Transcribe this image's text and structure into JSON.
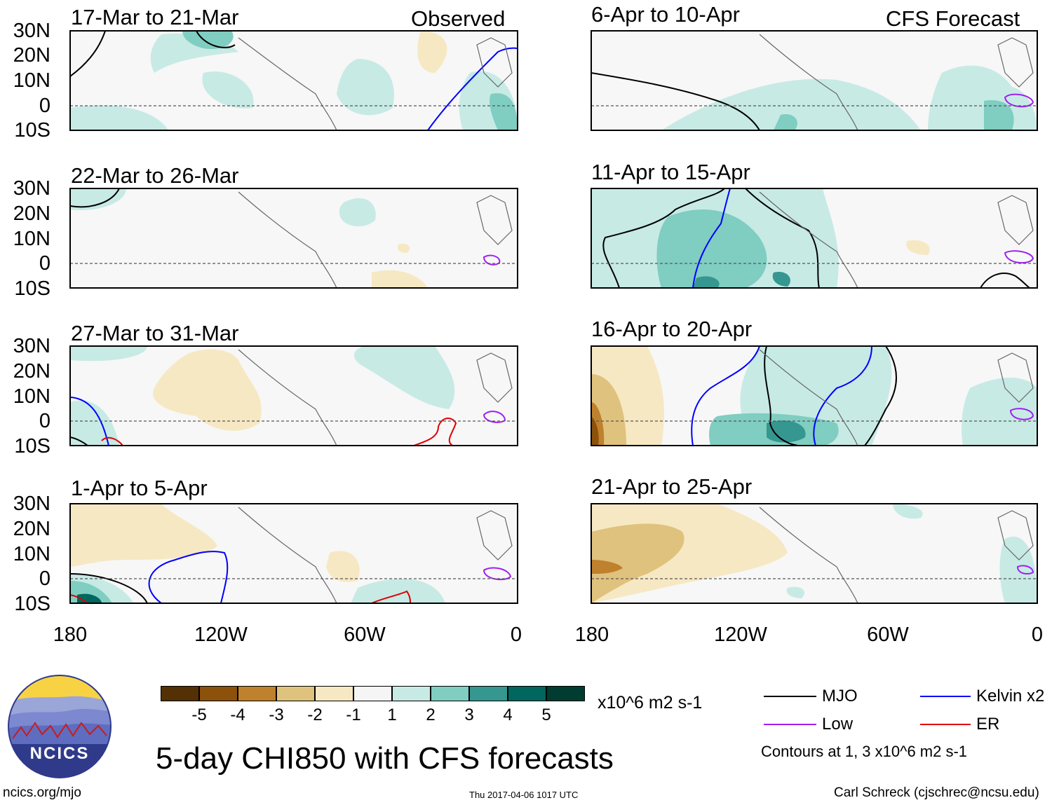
{
  "headers": {
    "observed": "Observed",
    "forecast": "CFS Forecast"
  },
  "lat_labels": [
    "30N",
    "20N",
    "10N",
    "0",
    "10S"
  ],
  "lon_labels": [
    "180",
    "120W",
    "60W",
    "0"
  ],
  "panels_left": [
    {
      "title": "17-Mar to 21-Mar"
    },
    {
      "title": "22-Mar to 26-Mar"
    },
    {
      "title": "27-Mar to 31-Mar"
    },
    {
      "title": "1-Apr to 5-Apr"
    }
  ],
  "panels_right": [
    {
      "title": "6-Apr to 10-Apr"
    },
    {
      "title": "11-Apr to 15-Apr"
    },
    {
      "title": "16-Apr to 20-Apr"
    },
    {
      "title": "21-Apr to 25-Apr"
    }
  ],
  "colorbar": {
    "colors": [
      "#543005",
      "#8c510a",
      "#bf812d",
      "#dfc27d",
      "#f6e8c3",
      "#f5f5f5",
      "#c7eae5",
      "#80cdc1",
      "#35978f",
      "#01665e",
      "#003c30"
    ],
    "ticks": [
      "-5",
      "-4",
      "-3",
      "-2",
      "-1",
      "1",
      "2",
      "3",
      "4",
      "5"
    ],
    "units": "x10^6 m2 s-1"
  },
  "legend": {
    "items": [
      {
        "label": "MJO",
        "color": "#000000"
      },
      {
        "label": "Kelvin x2",
        "color": "#0000ff"
      },
      {
        "label": "Low",
        "color": "#a020f0"
      },
      {
        "label": "ER",
        "color": "#e00000"
      }
    ],
    "note": "Contours at 1, 3 x10^6 m2 s-1"
  },
  "main_title": "5-day CHI850 with CFS forecasts",
  "logo": {
    "text": "NCICS"
  },
  "footer": {
    "url": "ncics.org/mjo",
    "timestamp": "Thu 2017-04-06 1017 UTC",
    "credit": "Carl Schreck (cjschrec@ncsu.edu)"
  }
}
